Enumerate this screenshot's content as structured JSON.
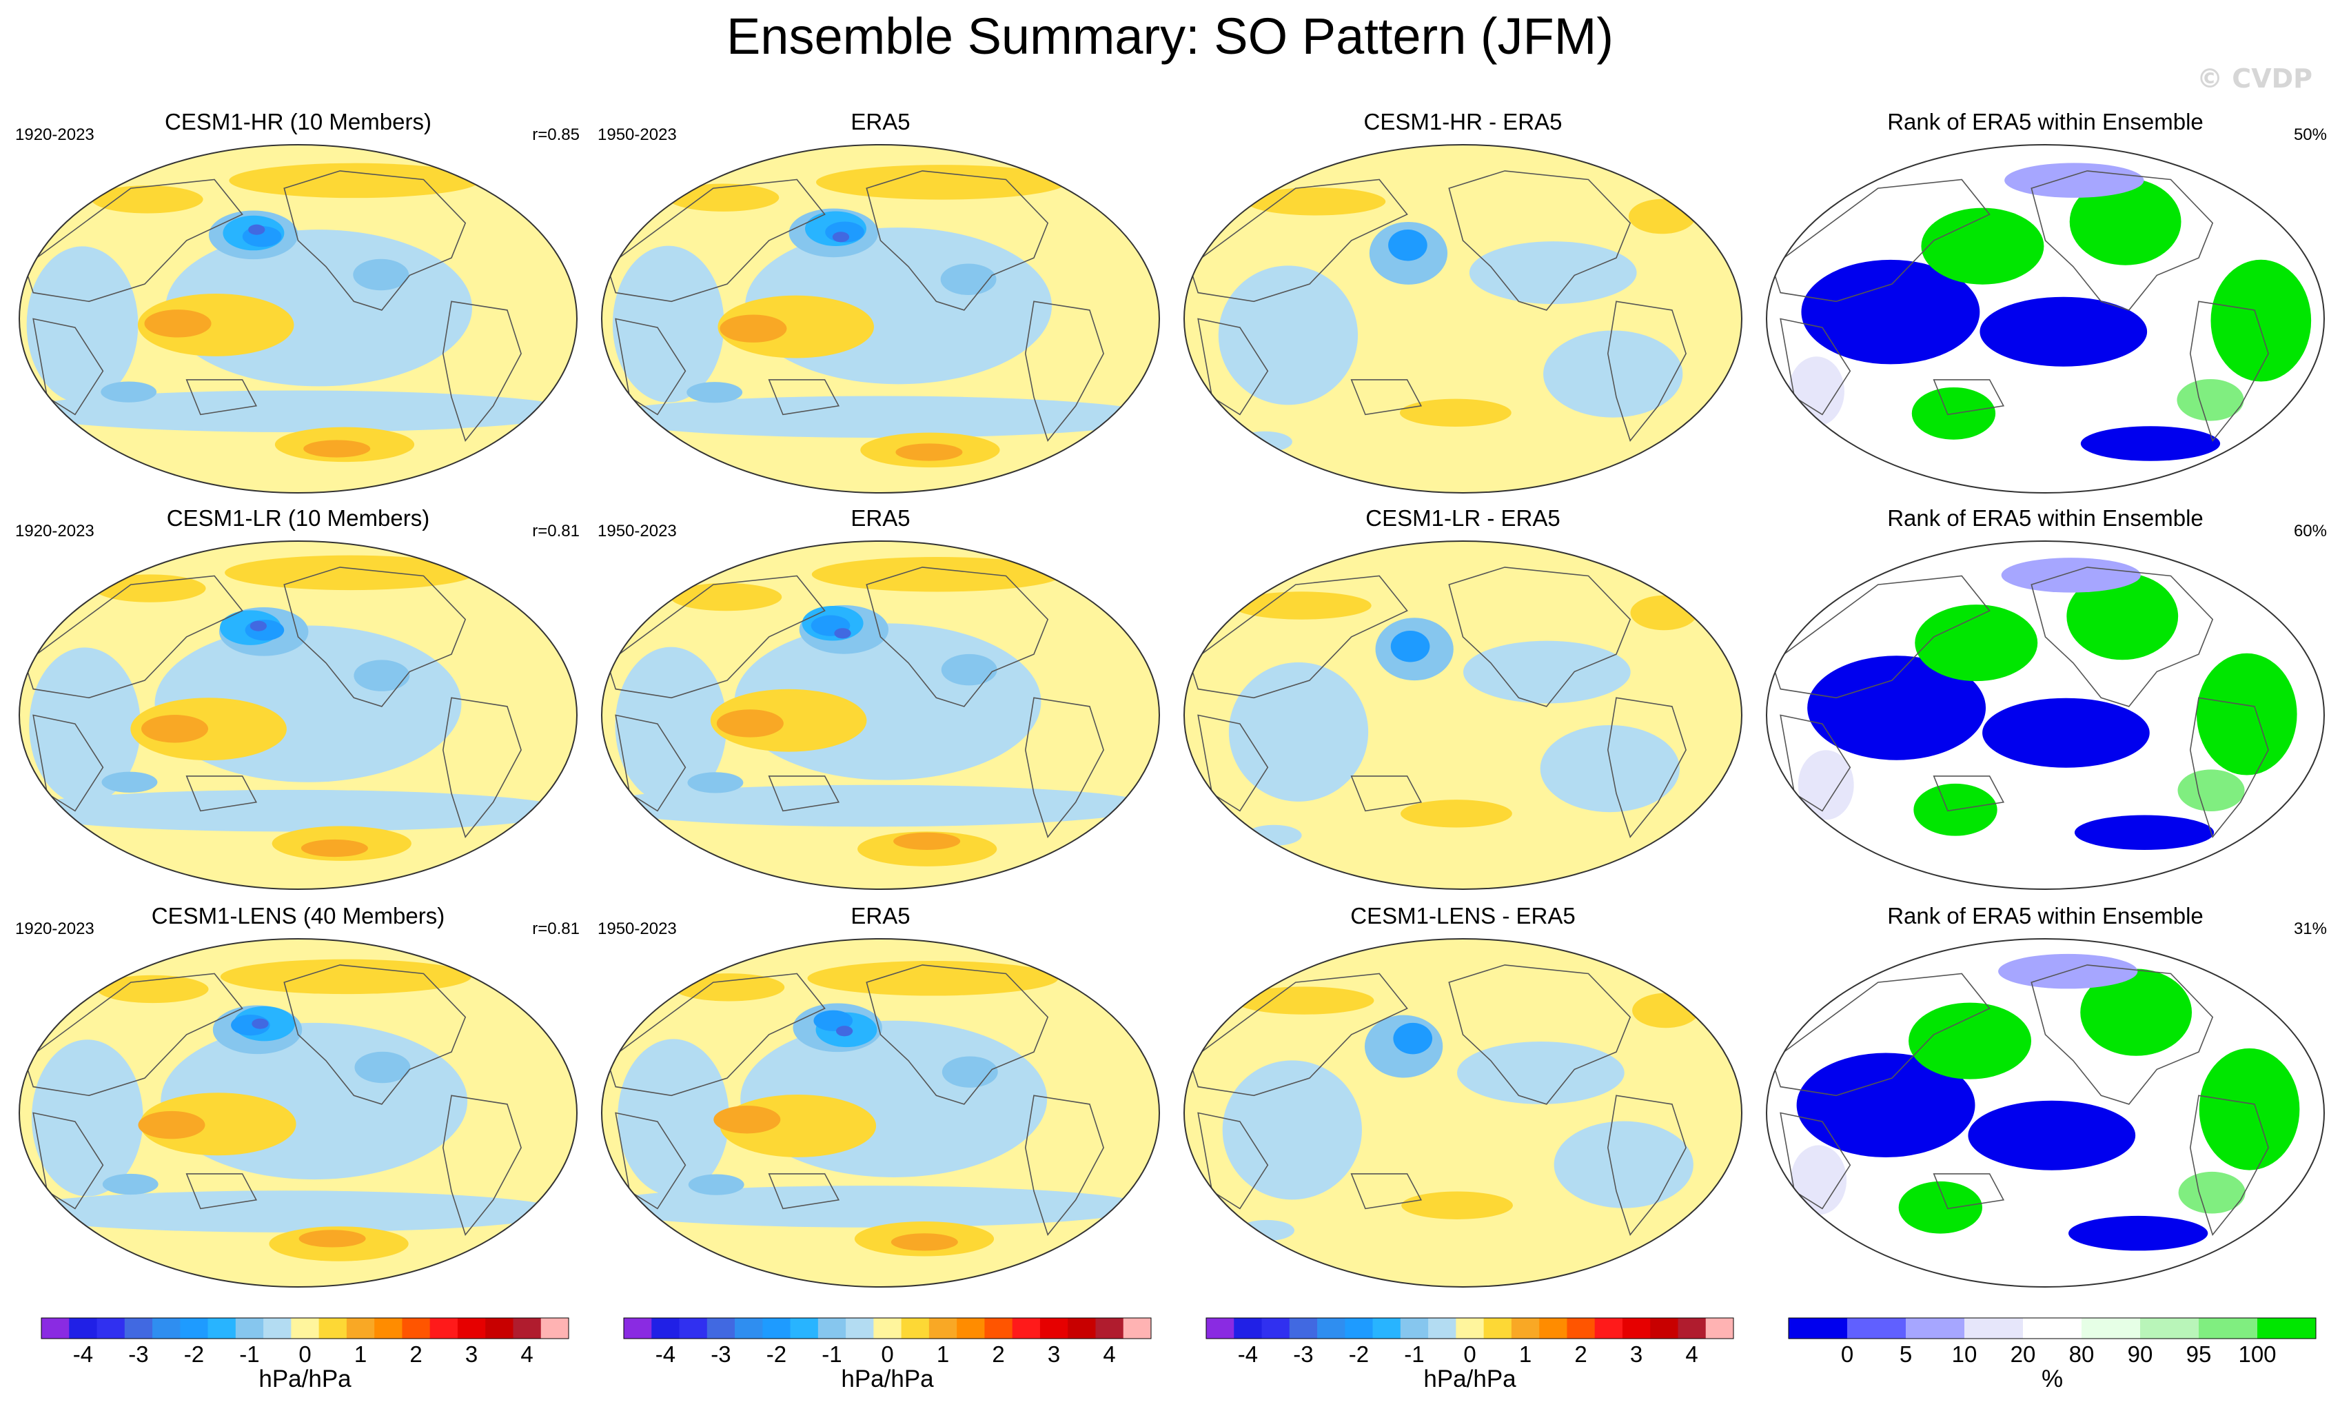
{
  "figure": {
    "title": "Ensemble Summary: SO Pattern (JFM)",
    "watermark": "© CVDP"
  },
  "colors": {
    "contour": [
      "#8a2be2",
      "#2020e6",
      "#3030f0",
      "#4169e1",
      "#2f8ef0",
      "#1e9bff",
      "#28b4ff",
      "#86c6ee",
      "#b3dcf2",
      "#fff59d",
      "#fdd835",
      "#f9a825",
      "#ff8c00",
      "#ff5500",
      "#ff1a1a",
      "#e60000",
      "#c80000",
      "#b01c2e",
      "#ffb3b3"
    ],
    "rank": [
      "#0000ee",
      "#6060ff",
      "#a6a6ff",
      "#e6e6fa",
      "#ffffff",
      "#e6ffe6",
      "#b9f5b9",
      "#80ee80",
      "#00e600"
    ],
    "land_outline": "#555555",
    "map_border": "#333333"
  },
  "chart_data": [
    {
      "type": "heatmap",
      "row": 1,
      "col": 1,
      "title": "CESM1-HR (10 Members)",
      "left_label": "1920-2023",
      "right_label": "r=0.85",
      "variant": "model",
      "seed": 11
    },
    {
      "type": "heatmap",
      "row": 1,
      "col": 2,
      "title": "ERA5",
      "left_label": "1950-2023",
      "right_label": "",
      "variant": "obs",
      "seed": 12
    },
    {
      "type": "heatmap",
      "row": 1,
      "col": 3,
      "title": "CESM1-HR - ERA5",
      "left_label": "",
      "right_label": "",
      "variant": "diff",
      "seed": 13
    },
    {
      "type": "heatmap",
      "row": 1,
      "col": 4,
      "title": "Rank of ERA5 within Ensemble",
      "left_label": "",
      "right_label": "50%",
      "variant": "rank",
      "seed": 14
    },
    {
      "type": "heatmap",
      "row": 2,
      "col": 1,
      "title": "CESM1-LR (10 Members)",
      "left_label": "1920-2023",
      "right_label": "r=0.81",
      "variant": "model",
      "seed": 21
    },
    {
      "type": "heatmap",
      "row": 2,
      "col": 2,
      "title": "ERA5",
      "left_label": "1950-2023",
      "right_label": "",
      "variant": "obs",
      "seed": 22
    },
    {
      "type": "heatmap",
      "row": 2,
      "col": 3,
      "title": "CESM1-LR - ERA5",
      "left_label": "",
      "right_label": "",
      "variant": "diff",
      "seed": 23
    },
    {
      "type": "heatmap",
      "row": 2,
      "col": 4,
      "title": "Rank of ERA5 within Ensemble",
      "left_label": "",
      "right_label": "60%",
      "variant": "rank",
      "seed": 24
    },
    {
      "type": "heatmap",
      "row": 3,
      "col": 1,
      "title": "CESM1-LENS (40 Members)",
      "left_label": "1920-2023",
      "right_label": "r=0.81",
      "variant": "model",
      "seed": 31
    },
    {
      "type": "heatmap",
      "row": 3,
      "col": 2,
      "title": "ERA5",
      "left_label": "1950-2023",
      "right_label": "",
      "variant": "obs",
      "seed": 32
    },
    {
      "type": "heatmap",
      "row": 3,
      "col": 3,
      "title": "CESM1-LENS - ERA5",
      "left_label": "",
      "right_label": "",
      "variant": "diff",
      "seed": 33
    },
    {
      "type": "heatmap",
      "row": 3,
      "col": 4,
      "title": "Rank of ERA5 within Ensemble",
      "left_label": "",
      "right_label": "31%",
      "variant": "rank",
      "seed": 34
    }
  ],
  "colorbars": [
    {
      "unit": "hPa/hPa",
      "ticks": [
        "-4",
        "-3",
        "-2",
        "-1",
        "0",
        "1",
        "2",
        "3",
        "4"
      ],
      "type": "contour"
    },
    {
      "unit": "hPa/hPa",
      "ticks": [
        "-4",
        "-3",
        "-2",
        "-1",
        "0",
        "1",
        "2",
        "3",
        "4"
      ],
      "type": "contour"
    },
    {
      "unit": "hPa/hPa",
      "ticks": [
        "-4",
        "-3",
        "-2",
        "-1",
        "0",
        "1",
        "2",
        "3",
        "4"
      ],
      "type": "contour"
    },
    {
      "unit": "%",
      "ticks": [
        "0",
        "5",
        "10",
        "20",
        "80",
        "90",
        "95",
        "100"
      ],
      "type": "rank"
    }
  ]
}
